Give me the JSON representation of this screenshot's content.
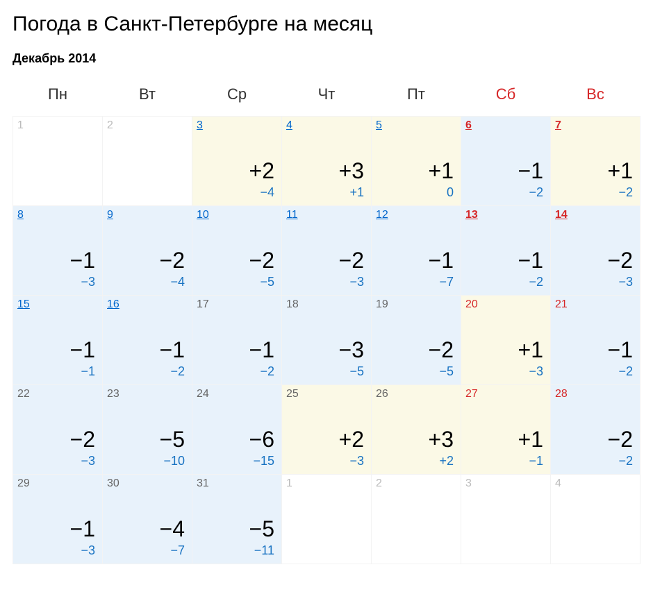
{
  "title": "Погода в Санкт-Петербурге на месяц",
  "subtitle": "Декабрь 2014",
  "colors": {
    "weekday_header": "#333333",
    "weekend_header": "#d62728",
    "day_link_weekday": "#0066cc",
    "day_link_weekend": "#d62728",
    "day_past": "#bbbbbb",
    "day_future": "#666666",
    "hi_temp": "#000000",
    "lo_temp": "#1973c2",
    "lo_temp_alt": "#1973c2",
    "cell_bg_default": "#ffffff",
    "cell_bg_blue": "#e8f2fb",
    "cell_bg_yellow": "#fbf9e6",
    "cell_border": "#f3f3f3"
  },
  "weekdays": [
    {
      "label": "Пн",
      "weekend": false
    },
    {
      "label": "Вт",
      "weekend": false
    },
    {
      "label": "Ср",
      "weekend": false
    },
    {
      "label": "Чт",
      "weekend": false
    },
    {
      "label": "Пт",
      "weekend": false
    },
    {
      "label": "Сб",
      "weekend": true
    },
    {
      "label": "Вс",
      "weekend": true
    }
  ],
  "weeks": [
    [
      {
        "day": "1",
        "link": false,
        "weekend": false,
        "muted": true,
        "bg": "default",
        "hi": null,
        "lo": null
      },
      {
        "day": "2",
        "link": false,
        "weekend": false,
        "muted": true,
        "bg": "default",
        "hi": null,
        "lo": null
      },
      {
        "day": "3",
        "link": true,
        "weekend": false,
        "muted": false,
        "bg": "yellow",
        "hi": "+2",
        "lo": "−4"
      },
      {
        "day": "4",
        "link": true,
        "weekend": false,
        "muted": false,
        "bg": "yellow",
        "hi": "+3",
        "lo": "+1"
      },
      {
        "day": "5",
        "link": true,
        "weekend": false,
        "muted": false,
        "bg": "yellow",
        "hi": "+1",
        "lo": "0"
      },
      {
        "day": "6",
        "link": true,
        "weekend": true,
        "muted": false,
        "bg": "blue",
        "hi": "−1",
        "lo": "−2"
      },
      {
        "day": "7",
        "link": true,
        "weekend": true,
        "muted": false,
        "bg": "yellow",
        "hi": "+1",
        "lo": "−2"
      }
    ],
    [
      {
        "day": "8",
        "link": true,
        "weekend": false,
        "muted": false,
        "bg": "blue",
        "hi": "−1",
        "lo": "−3"
      },
      {
        "day": "9",
        "link": true,
        "weekend": false,
        "muted": false,
        "bg": "blue",
        "hi": "−2",
        "lo": "−4"
      },
      {
        "day": "10",
        "link": true,
        "weekend": false,
        "muted": false,
        "bg": "blue",
        "hi": "−2",
        "lo": "−5"
      },
      {
        "day": "11",
        "link": true,
        "weekend": false,
        "muted": false,
        "bg": "blue",
        "hi": "−2",
        "lo": "−3"
      },
      {
        "day": "12",
        "link": true,
        "weekend": false,
        "muted": false,
        "bg": "blue",
        "hi": "−1",
        "lo": "−7"
      },
      {
        "day": "13",
        "link": true,
        "weekend": true,
        "muted": false,
        "bg": "blue",
        "hi": "−1",
        "lo": "−2"
      },
      {
        "day": "14",
        "link": true,
        "weekend": true,
        "muted": false,
        "bg": "blue",
        "hi": "−2",
        "lo": "−3"
      }
    ],
    [
      {
        "day": "15",
        "link": true,
        "weekend": false,
        "muted": false,
        "bg": "blue",
        "hi": "−1",
        "lo": "−1"
      },
      {
        "day": "16",
        "link": true,
        "weekend": false,
        "muted": false,
        "bg": "blue",
        "hi": "−1",
        "lo": "−2"
      },
      {
        "day": "17",
        "link": false,
        "weekend": false,
        "muted": false,
        "bg": "blue",
        "hi": "−1",
        "lo": "−2"
      },
      {
        "day": "18",
        "link": false,
        "weekend": false,
        "muted": false,
        "bg": "blue",
        "hi": "−3",
        "lo": "−5"
      },
      {
        "day": "19",
        "link": false,
        "weekend": false,
        "muted": false,
        "bg": "blue",
        "hi": "−2",
        "lo": "−5"
      },
      {
        "day": "20",
        "link": false,
        "weekend": true,
        "muted": false,
        "bg": "yellow",
        "hi": "+1",
        "lo": "−3"
      },
      {
        "day": "21",
        "link": false,
        "weekend": true,
        "muted": false,
        "bg": "blue",
        "hi": "−1",
        "lo": "−2"
      }
    ],
    [
      {
        "day": "22",
        "link": false,
        "weekend": false,
        "muted": false,
        "bg": "blue",
        "hi": "−2",
        "lo": "−3"
      },
      {
        "day": "23",
        "link": false,
        "weekend": false,
        "muted": false,
        "bg": "blue",
        "hi": "−5",
        "lo": "−10"
      },
      {
        "day": "24",
        "link": false,
        "weekend": false,
        "muted": false,
        "bg": "blue",
        "hi": "−6",
        "lo": "−15"
      },
      {
        "day": "25",
        "link": false,
        "weekend": false,
        "muted": false,
        "bg": "yellow",
        "hi": "+2",
        "lo": "−3"
      },
      {
        "day": "26",
        "link": false,
        "weekend": false,
        "muted": false,
        "bg": "yellow",
        "hi": "+3",
        "lo": "+2"
      },
      {
        "day": "27",
        "link": false,
        "weekend": true,
        "muted": false,
        "bg": "yellow",
        "hi": "+1",
        "lo": "−1"
      },
      {
        "day": "28",
        "link": false,
        "weekend": true,
        "muted": false,
        "bg": "blue",
        "hi": "−2",
        "lo": "−2"
      }
    ],
    [
      {
        "day": "29",
        "link": false,
        "weekend": false,
        "muted": false,
        "bg": "blue",
        "hi": "−1",
        "lo": "−3"
      },
      {
        "day": "30",
        "link": false,
        "weekend": false,
        "muted": false,
        "bg": "blue",
        "hi": "−4",
        "lo": "−7"
      },
      {
        "day": "31",
        "link": false,
        "weekend": false,
        "muted": false,
        "bg": "blue",
        "hi": "−5",
        "lo": "−11"
      },
      {
        "day": "1",
        "link": false,
        "weekend": false,
        "muted": true,
        "bg": "default",
        "hi": null,
        "lo": null
      },
      {
        "day": "2",
        "link": false,
        "weekend": false,
        "muted": true,
        "bg": "default",
        "hi": null,
        "lo": null
      },
      {
        "day": "3",
        "link": false,
        "weekend": true,
        "muted": true,
        "bg": "default",
        "hi": null,
        "lo": null
      },
      {
        "day": "4",
        "link": false,
        "weekend": true,
        "muted": true,
        "bg": "default",
        "hi": null,
        "lo": null
      }
    ]
  ]
}
